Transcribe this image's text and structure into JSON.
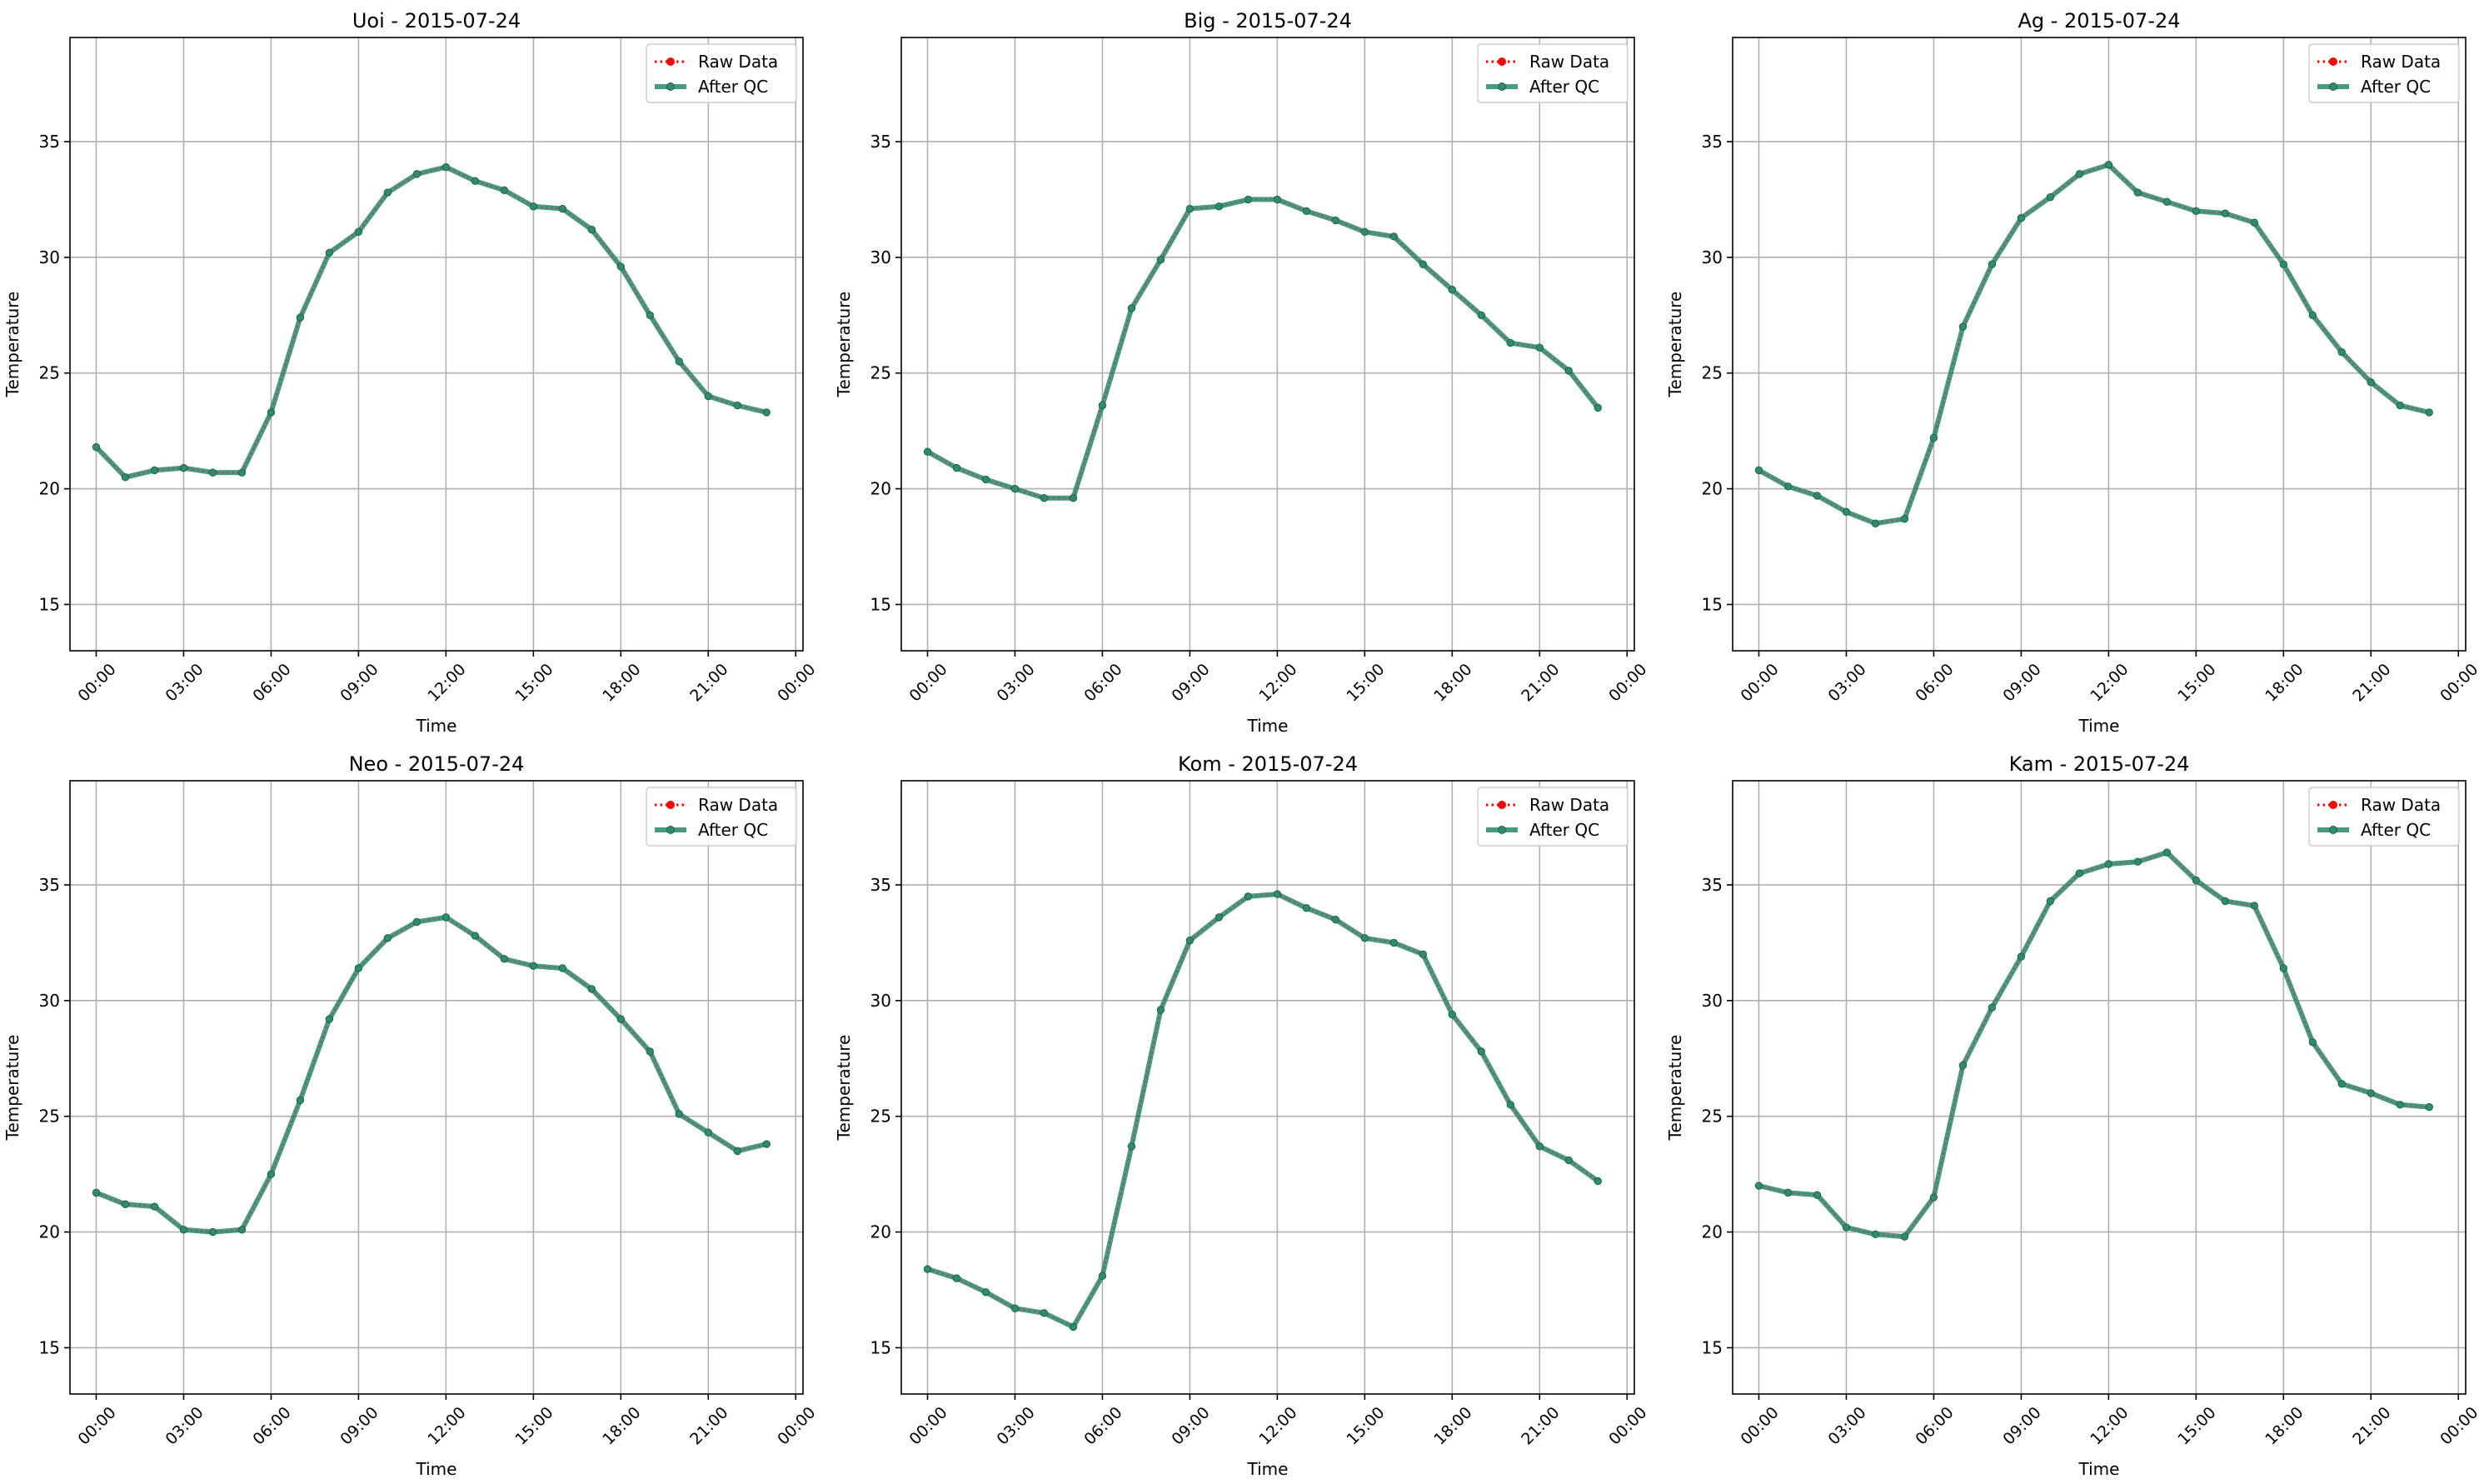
{
  "figure": {
    "colors": {
      "raw": "#ff0000",
      "qc": "#2e8b6e",
      "grid": "#b0b0b0",
      "axis": "#000000"
    }
  },
  "chart_data": [
    {
      "type": "line",
      "title": "Uoi - 2015-07-24",
      "xlabel": "Time",
      "ylabel": "Temperature",
      "xticks": [
        "00:00",
        "03:00",
        "06:00",
        "09:00",
        "12:00",
        "15:00",
        "18:00",
        "21:00",
        "00:00"
      ],
      "yticks": [
        15,
        20,
        25,
        30,
        35
      ],
      "ylim": [
        13,
        39.5
      ],
      "grid": true,
      "legend": "top-right",
      "x": [
        0,
        1,
        2,
        3,
        4,
        5,
        6,
        7,
        8,
        9,
        10,
        11,
        12,
        13,
        14,
        15,
        16,
        17,
        18,
        19,
        20,
        21,
        22,
        23
      ],
      "series": [
        {
          "name": "Raw Data",
          "style": "dotted",
          "values": [
            21.8,
            20.5,
            20.8,
            20.9,
            20.7,
            20.7,
            23.3,
            27.4,
            30.2,
            31.1,
            32.8,
            33.6,
            33.9,
            33.3,
            32.9,
            32.2,
            32.1,
            31.2,
            29.6,
            27.5,
            25.5,
            24.0,
            23.6,
            23.3
          ]
        },
        {
          "name": "After QC",
          "style": "solid",
          "values": [
            21.8,
            20.5,
            20.8,
            20.9,
            20.7,
            20.7,
            23.3,
            27.4,
            30.2,
            31.1,
            32.8,
            33.6,
            33.9,
            33.3,
            32.9,
            32.2,
            32.1,
            31.2,
            29.6,
            27.5,
            25.5,
            24.0,
            23.6,
            23.3
          ]
        }
      ]
    },
    {
      "type": "line",
      "title": "Big - 2015-07-24",
      "xlabel": "Time",
      "ylabel": "Temperature",
      "xticks": [
        "00:00",
        "03:00",
        "06:00",
        "09:00",
        "12:00",
        "15:00",
        "18:00",
        "21:00",
        "00:00"
      ],
      "yticks": [
        15,
        20,
        25,
        30,
        35
      ],
      "ylim": [
        13,
        39.5
      ],
      "grid": true,
      "legend": "top-right",
      "x": [
        0,
        1,
        2,
        3,
        4,
        5,
        6,
        7,
        8,
        9,
        10,
        11,
        12,
        13,
        14,
        15,
        16,
        17,
        18,
        19,
        20,
        21,
        22,
        23
      ],
      "series": [
        {
          "name": "Raw Data",
          "style": "dotted",
          "values": [
            21.6,
            20.9,
            20.4,
            20.0,
            19.6,
            19.6,
            23.6,
            27.8,
            29.9,
            32.1,
            32.2,
            32.5,
            32.5,
            32.0,
            31.6,
            31.1,
            30.9,
            29.7,
            28.6,
            27.5,
            26.3,
            26.1,
            25.1,
            23.5
          ]
        },
        {
          "name": "After QC",
          "style": "solid",
          "values": [
            21.6,
            20.9,
            20.4,
            20.0,
            19.6,
            19.6,
            23.6,
            27.8,
            29.9,
            32.1,
            32.2,
            32.5,
            32.5,
            32.0,
            31.6,
            31.1,
            30.9,
            29.7,
            28.6,
            27.5,
            26.3,
            26.1,
            25.1,
            23.5
          ]
        }
      ]
    },
    {
      "type": "line",
      "title": "Ag - 2015-07-24",
      "xlabel": "Time",
      "ylabel": "Temperature",
      "xticks": [
        "00:00",
        "03:00",
        "06:00",
        "09:00",
        "12:00",
        "15:00",
        "18:00",
        "21:00",
        "00:00"
      ],
      "yticks": [
        15,
        20,
        25,
        30,
        35
      ],
      "ylim": [
        13,
        39.5
      ],
      "grid": true,
      "legend": "top-right",
      "x": [
        0,
        1,
        2,
        3,
        4,
        5,
        6,
        7,
        8,
        9,
        10,
        11,
        12,
        13,
        14,
        15,
        16,
        17,
        18,
        19,
        20,
        21,
        22,
        23
      ],
      "series": [
        {
          "name": "Raw Data",
          "style": "dotted",
          "values": [
            20.8,
            20.1,
            19.7,
            19.0,
            18.5,
            18.7,
            22.2,
            27.0,
            29.7,
            31.7,
            32.6,
            33.6,
            34.0,
            32.8,
            32.4,
            32.0,
            31.9,
            31.5,
            29.7,
            27.5,
            25.9,
            24.6,
            23.6,
            23.3
          ]
        },
        {
          "name": "After QC",
          "style": "solid",
          "values": [
            20.8,
            20.1,
            19.7,
            19.0,
            18.5,
            18.7,
            22.2,
            27.0,
            29.7,
            31.7,
            32.6,
            33.6,
            34.0,
            32.8,
            32.4,
            32.0,
            31.9,
            31.5,
            29.7,
            27.5,
            25.9,
            24.6,
            23.6,
            23.3
          ]
        }
      ]
    },
    {
      "type": "line",
      "title": "Neo - 2015-07-24",
      "xlabel": "Time",
      "ylabel": "Temperature",
      "xticks": [
        "00:00",
        "03:00",
        "06:00",
        "09:00",
        "12:00",
        "15:00",
        "18:00",
        "21:00",
        "00:00"
      ],
      "yticks": [
        15,
        20,
        25,
        30,
        35
      ],
      "ylim": [
        13,
        39.5
      ],
      "grid": true,
      "legend": "top-right",
      "x": [
        0,
        1,
        2,
        3,
        4,
        5,
        6,
        7,
        8,
        9,
        10,
        11,
        12,
        13,
        14,
        15,
        16,
        17,
        18,
        19,
        20,
        21,
        22,
        23
      ],
      "series": [
        {
          "name": "Raw Data",
          "style": "dotted",
          "values": [
            21.7,
            21.2,
            21.1,
            20.1,
            20.0,
            20.1,
            22.5,
            25.7,
            29.2,
            31.4,
            32.7,
            33.4,
            33.6,
            32.8,
            31.8,
            31.5,
            31.4,
            30.5,
            29.2,
            27.8,
            25.1,
            24.3,
            23.5,
            23.8
          ]
        },
        {
          "name": "After QC",
          "style": "solid",
          "values": [
            21.7,
            21.2,
            21.1,
            20.1,
            20.0,
            20.1,
            22.5,
            25.7,
            29.2,
            31.4,
            32.7,
            33.4,
            33.6,
            32.8,
            31.8,
            31.5,
            31.4,
            30.5,
            29.2,
            27.8,
            25.1,
            24.3,
            23.5,
            23.8
          ]
        }
      ]
    },
    {
      "type": "line",
      "title": "Kom - 2015-07-24",
      "xlabel": "Time",
      "ylabel": "Temperature",
      "xticks": [
        "00:00",
        "03:00",
        "06:00",
        "09:00",
        "12:00",
        "15:00",
        "18:00",
        "21:00",
        "00:00"
      ],
      "yticks": [
        15,
        20,
        25,
        30,
        35
      ],
      "ylim": [
        13,
        39.5
      ],
      "grid": true,
      "legend": "top-right",
      "x": [
        0,
        1,
        2,
        3,
        4,
        5,
        6,
        7,
        8,
        9,
        10,
        11,
        12,
        13,
        14,
        15,
        16,
        17,
        18,
        19,
        20,
        21,
        22,
        23
      ],
      "series": [
        {
          "name": "Raw Data",
          "style": "dotted",
          "values": [
            18.4,
            18.0,
            17.4,
            16.7,
            16.5,
            15.9,
            18.1,
            23.7,
            29.6,
            32.6,
            33.6,
            34.5,
            34.6,
            34.0,
            33.5,
            32.7,
            32.5,
            32.0,
            29.4,
            27.8,
            25.5,
            23.7,
            23.1,
            22.2
          ]
        },
        {
          "name": "After QC",
          "style": "solid",
          "values": [
            18.4,
            18.0,
            17.4,
            16.7,
            16.5,
            15.9,
            18.1,
            23.7,
            29.6,
            32.6,
            33.6,
            34.5,
            34.6,
            34.0,
            33.5,
            32.7,
            32.5,
            32.0,
            29.4,
            27.8,
            25.5,
            23.7,
            23.1,
            22.2
          ]
        }
      ]
    },
    {
      "type": "line",
      "title": "Kam - 2015-07-24",
      "xlabel": "Time",
      "ylabel": "Temperature",
      "xticks": [
        "00:00",
        "03:00",
        "06:00",
        "09:00",
        "12:00",
        "15:00",
        "18:00",
        "21:00",
        "00:00"
      ],
      "yticks": [
        15,
        20,
        25,
        30,
        35
      ],
      "ylim": [
        13,
        39.5
      ],
      "grid": true,
      "legend": "top-right",
      "x": [
        0,
        1,
        2,
        3,
        4,
        5,
        6,
        7,
        8,
        9,
        10,
        11,
        12,
        13,
        14,
        15,
        16,
        17,
        18,
        19,
        20,
        21,
        22,
        23
      ],
      "series": [
        {
          "name": "Raw Data",
          "style": "dotted",
          "values": [
            22.0,
            21.7,
            21.6,
            20.2,
            19.9,
            19.8,
            21.5,
            27.2,
            29.7,
            31.9,
            34.3,
            35.5,
            35.9,
            36.0,
            36.4,
            35.2,
            34.3,
            34.1,
            31.4,
            28.2,
            26.4,
            26.0,
            25.5,
            25.4
          ]
        },
        {
          "name": "After QC",
          "style": "solid",
          "values": [
            22.0,
            21.7,
            21.6,
            20.2,
            19.9,
            19.8,
            21.5,
            27.2,
            29.7,
            31.9,
            34.3,
            35.5,
            35.9,
            36.0,
            36.4,
            35.2,
            34.3,
            34.1,
            31.4,
            28.2,
            26.4,
            26.0,
            25.5,
            25.4
          ]
        }
      ]
    }
  ]
}
